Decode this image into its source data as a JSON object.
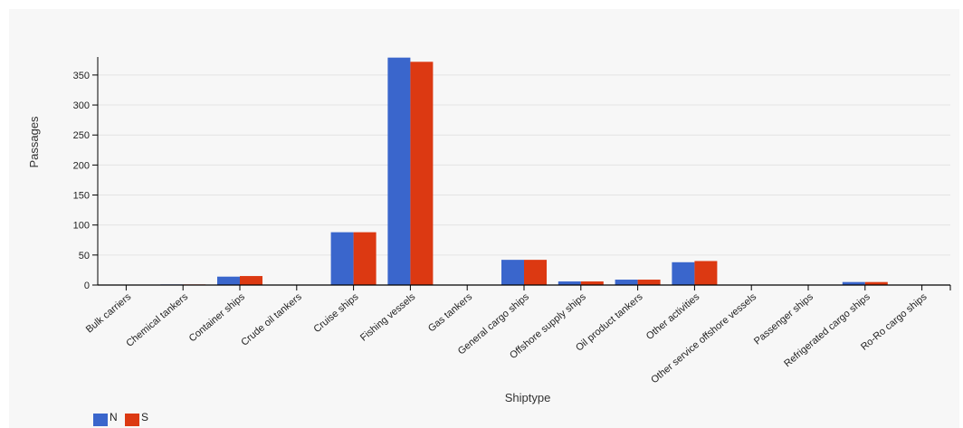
{
  "chart_data": {
    "type": "bar",
    "xlabel": "Shiptype",
    "ylabel": "Passages",
    "ylim": [
      0,
      380
    ],
    "yticks": [
      0,
      50,
      100,
      150,
      200,
      250,
      300,
      350
    ],
    "grid": true,
    "legend_position": "bottom-left",
    "categories": [
      "Bulk carriers",
      "Chemical tankers",
      "Container ships",
      "Crude oil tankers",
      "Cruise ships",
      "Fishing vessels",
      "Gas tankers",
      "General cargo ships",
      "Offshore supply ships",
      "Oil product tankers",
      "Other activities",
      "Other service offshore vessels",
      "Passenger ships",
      "Refrigerated cargo ships",
      "Ro-Ro cargo ships"
    ],
    "series": [
      {
        "name": "N",
        "color": "#3a66cc",
        "values": [
          0,
          1,
          14,
          0,
          88,
          379,
          0,
          42,
          6,
          9,
          38,
          0,
          0,
          5,
          0
        ]
      },
      {
        "name": "S",
        "color": "#dc3912",
        "values": [
          0,
          1,
          15,
          0,
          88,
          372,
          0,
          42,
          6,
          9,
          40,
          0,
          0,
          5,
          0
        ]
      }
    ]
  }
}
